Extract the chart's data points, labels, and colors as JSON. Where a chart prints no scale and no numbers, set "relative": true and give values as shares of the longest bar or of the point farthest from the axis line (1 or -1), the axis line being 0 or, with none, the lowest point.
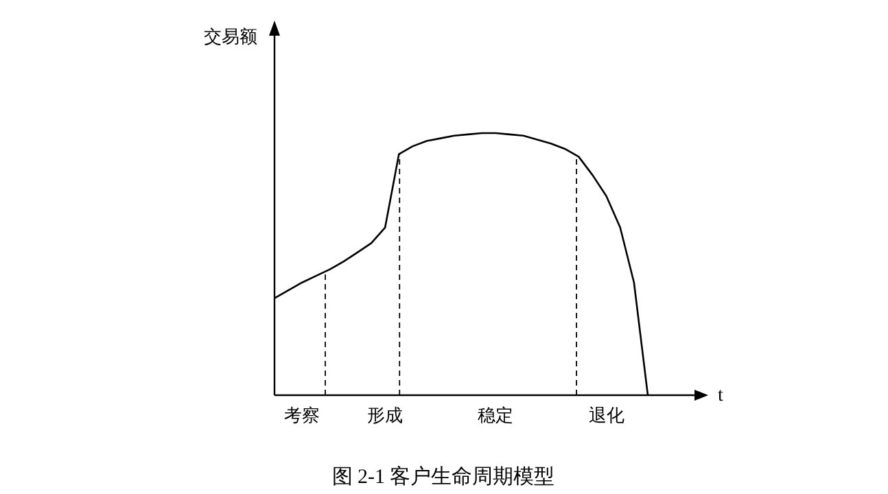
{
  "chart_data": {
    "type": "line",
    "title": "图 2-1 客户生命周期模型",
    "xlabel": "t",
    "ylabel": "交易额",
    "relative": true,
    "color": "#000000",
    "categories": [
      null,
      null,
      "考察",
      null,
      null,
      null,
      null,
      null,
      "形成",
      null,
      null,
      null,
      null,
      null,
      null,
      null,
      "稳定",
      null,
      null,
      null,
      null,
      null,
      null,
      null,
      "退化",
      null,
      null,
      null
    ],
    "values": [
      0.37,
      0.4,
      0.43,
      0.455,
      0.48,
      0.51,
      0.545,
      0.58,
      0.64,
      0.92,
      0.95,
      0.97,
      0.98,
      0.99,
      0.995,
      1.0,
      1.0,
      0.995,
      0.99,
      0.975,
      0.96,
      0.94,
      0.91,
      0.84,
      0.76,
      0.64,
      0.43,
      0
    ]
  }
}
